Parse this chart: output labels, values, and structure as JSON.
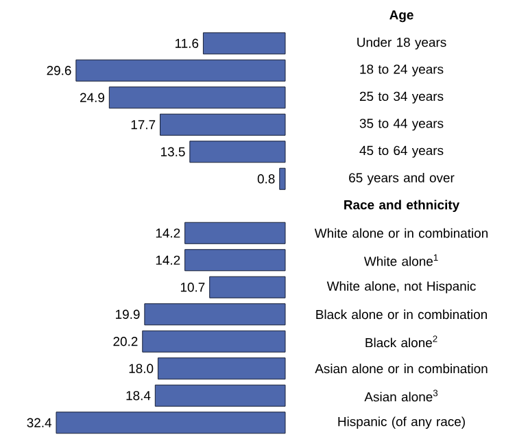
{
  "chart_data": {
    "type": "bar",
    "orientation": "horizontal",
    "color": "#4e68ad",
    "categories": [
      "Age",
      "Under 18 years",
      "18 to 24 years",
      "25 to 34 years",
      "35 to 44 years",
      "45 to 64 years",
      "65 years and over",
      "Race and ethnicity",
      "White alone or in combination",
      "White alone$^{1}$",
      "White alone, not Hispanic",
      "Black alone or in combination",
      "Black alone$^{2}$",
      "Asian alone or in combination",
      "Asian alone$^{3}$",
      "Hispanic (of any race)"
    ],
    "values": [
      null,
      11.6,
      29.6,
      24.9,
      17.7,
      13.5,
      0.8,
      null,
      14.2,
      14.2,
      10.7,
      19.9,
      20.2,
      18.0,
      18.4,
      32.4
    ],
    "value_labels": [
      null,
      "11.6",
      "29.6",
      "24.9",
      "17.7",
      "13.5",
      "0.8",
      null,
      "14.2",
      "14.2",
      "10.7",
      "19.9",
      "20.2",
      "18.0",
      "18.4",
      "32.4"
    ],
    "tick_labels": "y"
  }
}
